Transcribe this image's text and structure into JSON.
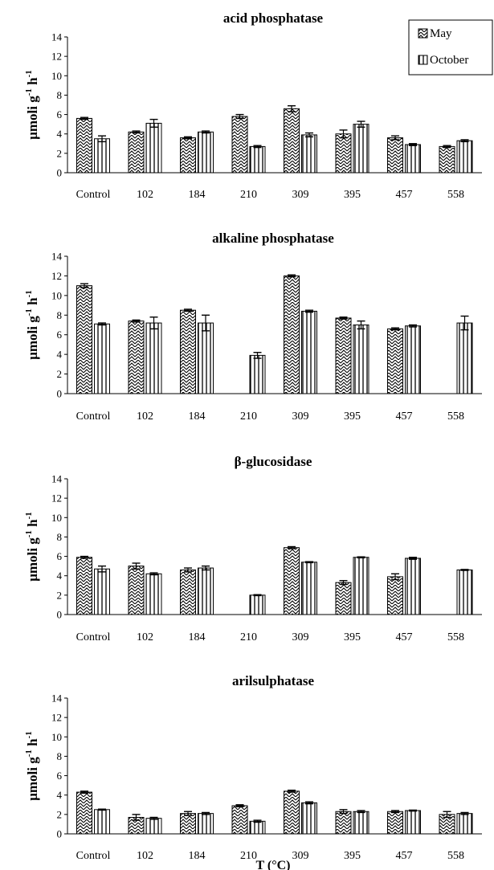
{
  "legend": [
    {
      "name": "May",
      "pattern": "diagonal"
    },
    {
      "name": "October",
      "pattern": "vertical"
    }
  ],
  "chart_data": [
    {
      "type": "bar",
      "title": "acid phosphatase",
      "ylabel": "μmoli g-1 h-1",
      "xlabel": "",
      "categories": [
        "Control",
        "102",
        "184",
        "210",
        "309",
        "395",
        "457",
        "558"
      ],
      "ylim": [
        0,
        14
      ],
      "yticks": [
        0,
        2,
        4,
        6,
        8,
        10,
        12,
        14
      ],
      "grid": false,
      "legend_position": "top-right",
      "series": [
        {
          "name": "May",
          "values": [
            5.6,
            4.2,
            3.6,
            5.8,
            6.6,
            4.0,
            3.6,
            2.7
          ],
          "errors": [
            0.1,
            0.1,
            0.1,
            0.2,
            0.3,
            0.4,
            0.2,
            0.1
          ]
        },
        {
          "name": "October",
          "values": [
            3.5,
            5.1,
            4.2,
            2.7,
            3.9,
            5.0,
            2.9,
            3.3
          ],
          "errors": [
            0.3,
            0.4,
            0.1,
            0.1,
            0.2,
            0.3,
            0.1,
            0.1
          ]
        }
      ]
    },
    {
      "type": "bar",
      "title": "alkaline phosphatase",
      "ylabel": "μmoli g-1 h-1",
      "xlabel": "",
      "categories": [
        "Control",
        "102",
        "184",
        "210",
        "309",
        "395",
        "457",
        "558"
      ],
      "ylim": [
        0,
        14
      ],
      "yticks": [
        0,
        2,
        4,
        6,
        8,
        10,
        12,
        14
      ],
      "grid": false,
      "series": [
        {
          "name": "May",
          "values": [
            11.0,
            7.4,
            8.5,
            null,
            12.0,
            7.7,
            6.6,
            null
          ],
          "errors": [
            0.2,
            0.1,
            0.1,
            null,
            0.1,
            0.1,
            0.1,
            null
          ]
        },
        {
          "name": "October",
          "values": [
            7.1,
            7.2,
            7.2,
            3.9,
            8.4,
            7.0,
            6.9,
            7.2
          ],
          "errors": [
            0.1,
            0.6,
            0.8,
            0.3,
            0.1,
            0.4,
            0.1,
            0.7
          ]
        }
      ]
    },
    {
      "type": "bar",
      "title": "β-glucosidase",
      "ylabel": "μmoli g-1 h-1",
      "xlabel": "",
      "categories": [
        "Control",
        "102",
        "184",
        "210",
        "309",
        "395",
        "457",
        "558"
      ],
      "ylim": [
        0,
        14
      ],
      "yticks": [
        0,
        2,
        4,
        6,
        8,
        10,
        12,
        14
      ],
      "grid": false,
      "series": [
        {
          "name": "May",
          "values": [
            5.9,
            5.0,
            4.6,
            null,
            6.9,
            3.3,
            3.9,
            null
          ],
          "errors": [
            0.1,
            0.3,
            0.2,
            null,
            0.1,
            0.2,
            0.3,
            null
          ]
        },
        {
          "name": "October",
          "values": [
            4.7,
            4.2,
            4.8,
            2.0,
            5.4,
            5.9,
            5.8,
            4.6
          ],
          "errors": [
            0.3,
            0.1,
            0.2,
            0.05,
            0.05,
            0.05,
            0.1,
            0.05
          ]
        }
      ]
    },
    {
      "type": "bar",
      "title": "arilsulphatase",
      "ylabel": "μmoli g-1 h-1",
      "xlabel": "T (°C)",
      "categories": [
        "Control",
        "102",
        "184",
        "210",
        "309",
        "395",
        "457",
        "558"
      ],
      "ylim": [
        0,
        14
      ],
      "yticks": [
        0,
        2,
        4,
        6,
        8,
        10,
        12,
        14
      ],
      "grid": false,
      "series": [
        {
          "name": "May",
          "values": [
            4.3,
            1.7,
            2.1,
            2.9,
            4.4,
            2.3,
            2.3,
            2.0
          ],
          "errors": [
            0.1,
            0.3,
            0.2,
            0.1,
            0.1,
            0.2,
            0.1,
            0.3
          ]
        },
        {
          "name": "October",
          "values": [
            2.5,
            1.6,
            2.1,
            1.3,
            3.2,
            2.3,
            2.4,
            2.1
          ],
          "errors": [
            0.05,
            0.1,
            0.1,
            0.1,
            0.1,
            0.1,
            0.05,
            0.1
          ]
        }
      ]
    }
  ]
}
